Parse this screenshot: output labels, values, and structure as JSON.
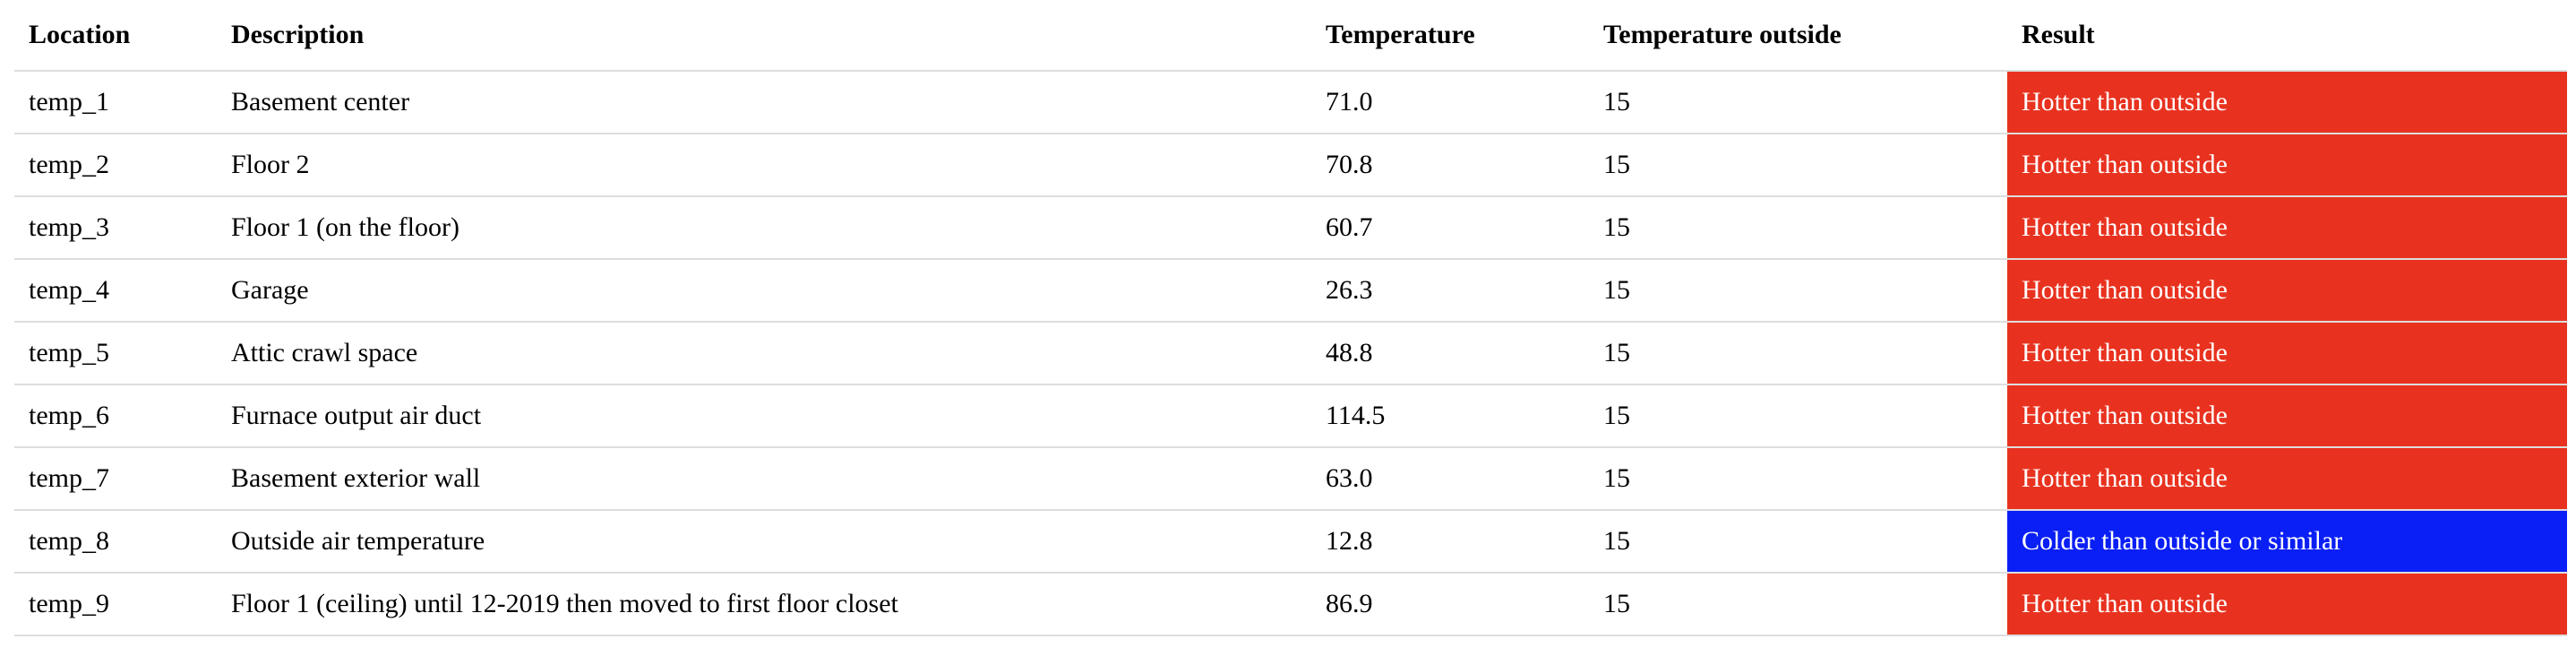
{
  "table": {
    "headers": [
      "Location",
      "Description",
      "Temperature",
      "Temperature outside",
      "Result"
    ],
    "rows": [
      {
        "location": "temp_1",
        "description": "Basement center",
        "temperature": "71.0",
        "outside": "15",
        "result": "Hotter than outside",
        "result_color": "#e8321f"
      },
      {
        "location": "temp_2",
        "description": "Floor 2",
        "temperature": "70.8",
        "outside": "15",
        "result": "Hotter than outside",
        "result_color": "#e8321f"
      },
      {
        "location": "temp_3",
        "description": "Floor 1 (on the floor)",
        "temperature": "60.7",
        "outside": "15",
        "result": "Hotter than outside",
        "result_color": "#e8321f"
      },
      {
        "location": "temp_4",
        "description": "Garage",
        "temperature": "26.3",
        "outside": "15",
        "result": "Hotter than outside",
        "result_color": "#e8321f"
      },
      {
        "location": "temp_5",
        "description": "Attic crawl space",
        "temperature": "48.8",
        "outside": "15",
        "result": "Hotter than outside",
        "result_color": "#e8321f"
      },
      {
        "location": "temp_6",
        "description": "Furnace output air duct",
        "temperature": "114.5",
        "outside": "15",
        "result": "Hotter than outside",
        "result_color": "#e8321f"
      },
      {
        "location": "temp_7",
        "description": "Basement exterior wall",
        "temperature": "63.0",
        "outside": "15",
        "result": "Hotter than outside",
        "result_color": "#e8321f"
      },
      {
        "location": "temp_8",
        "description": "Outside air temperature",
        "temperature": "12.8",
        "outside": "15",
        "result": "Colder than outside or similar",
        "result_color": "#0a1ff5"
      },
      {
        "location": "temp_9",
        "description": "Floor 1 (ceiling) until 12-2019 then moved to first floor closet",
        "temperature": "86.9",
        "outside": "15",
        "result": "Hotter than outside",
        "result_color": "#e8321f"
      }
    ]
  }
}
